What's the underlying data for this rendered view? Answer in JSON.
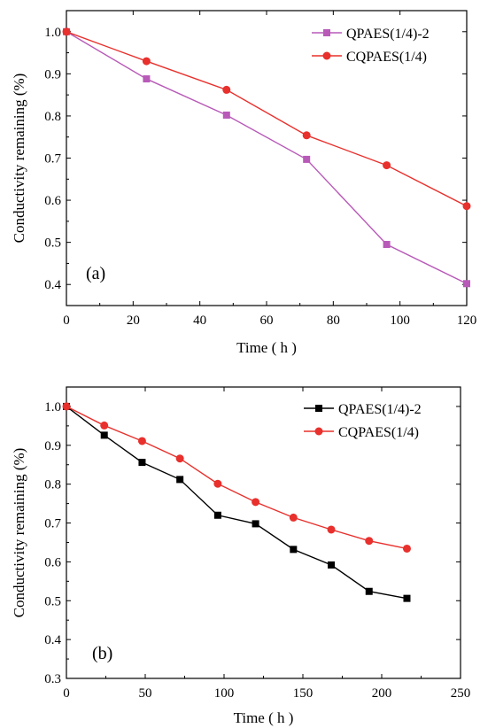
{
  "chart_data": [
    {
      "type": "line",
      "panel_label": "(a)",
      "xlabel": "Time ( h )",
      "ylabel": "Conductivity remaining (%)",
      "xlim": [
        0,
        120
      ],
      "ylim": [
        0.35,
        1.05
      ],
      "xticks": [
        0,
        20,
        40,
        60,
        80,
        100,
        120
      ],
      "yticks": [
        0.4,
        0.5,
        0.6,
        0.7,
        0.8,
        0.9,
        1.0
      ],
      "xtick_labels": [
        "0",
        "20",
        "40",
        "60",
        "80",
        "100",
        "120"
      ],
      "ytick_labels": [
        "0.4",
        "0.5",
        "0.6",
        "0.7",
        "0.8",
        "0.9",
        "1.0"
      ],
      "grid": false,
      "legend_position": "top-right",
      "series": [
        {
          "name": "QPAES(1/4)-2",
          "color": "#b85ab8",
          "marker": "square",
          "x": [
            0,
            24,
            48,
            72,
            96,
            120
          ],
          "y": [
            1.0,
            0.888,
            0.802,
            0.697,
            0.495,
            0.402
          ]
        },
        {
          "name": "CQPAES(1/4)",
          "color": "#e8302c",
          "marker": "circle",
          "x": [
            0,
            24,
            48,
            72,
            96,
            120
          ],
          "y": [
            1.0,
            0.93,
            0.862,
            0.754,
            0.683,
            0.586
          ]
        }
      ]
    },
    {
      "type": "line",
      "panel_label": "(b)",
      "xlabel": "Time ( h )",
      "ylabel": "Conductivity remaining (%)",
      "xlim": [
        0,
        250
      ],
      "ylim": [
        0.3,
        1.05
      ],
      "xticks": [
        0,
        50,
        100,
        150,
        200,
        250
      ],
      "yticks": [
        0.3,
        0.4,
        0.5,
        0.6,
        0.7,
        0.8,
        0.9,
        1.0
      ],
      "xtick_labels": [
        "0",
        "50",
        "100",
        "150",
        "200",
        "250"
      ],
      "ytick_labels": [
        "0.3",
        "0.4",
        "0.5",
        "0.6",
        "0.7",
        "0.8",
        "0.9",
        "1.0"
      ],
      "grid": false,
      "legend_position": "top-right",
      "series": [
        {
          "name": "QPAES(1/4)-2",
          "color": "#000000",
          "marker": "square",
          "x": [
            0,
            24,
            48,
            72,
            96,
            120,
            144,
            168,
            192,
            216
          ],
          "y": [
            1.0,
            0.926,
            0.856,
            0.812,
            0.72,
            0.698,
            0.632,
            0.592,
            0.524,
            0.506
          ]
        },
        {
          "name": "CQPAES(1/4)",
          "color": "#e8302c",
          "marker": "circle",
          "x": [
            0,
            24,
            48,
            72,
            96,
            120,
            144,
            168,
            192,
            216
          ],
          "y": [
            1.0,
            0.951,
            0.911,
            0.866,
            0.801,
            0.754,
            0.714,
            0.683,
            0.654,
            0.634
          ]
        }
      ]
    }
  ]
}
